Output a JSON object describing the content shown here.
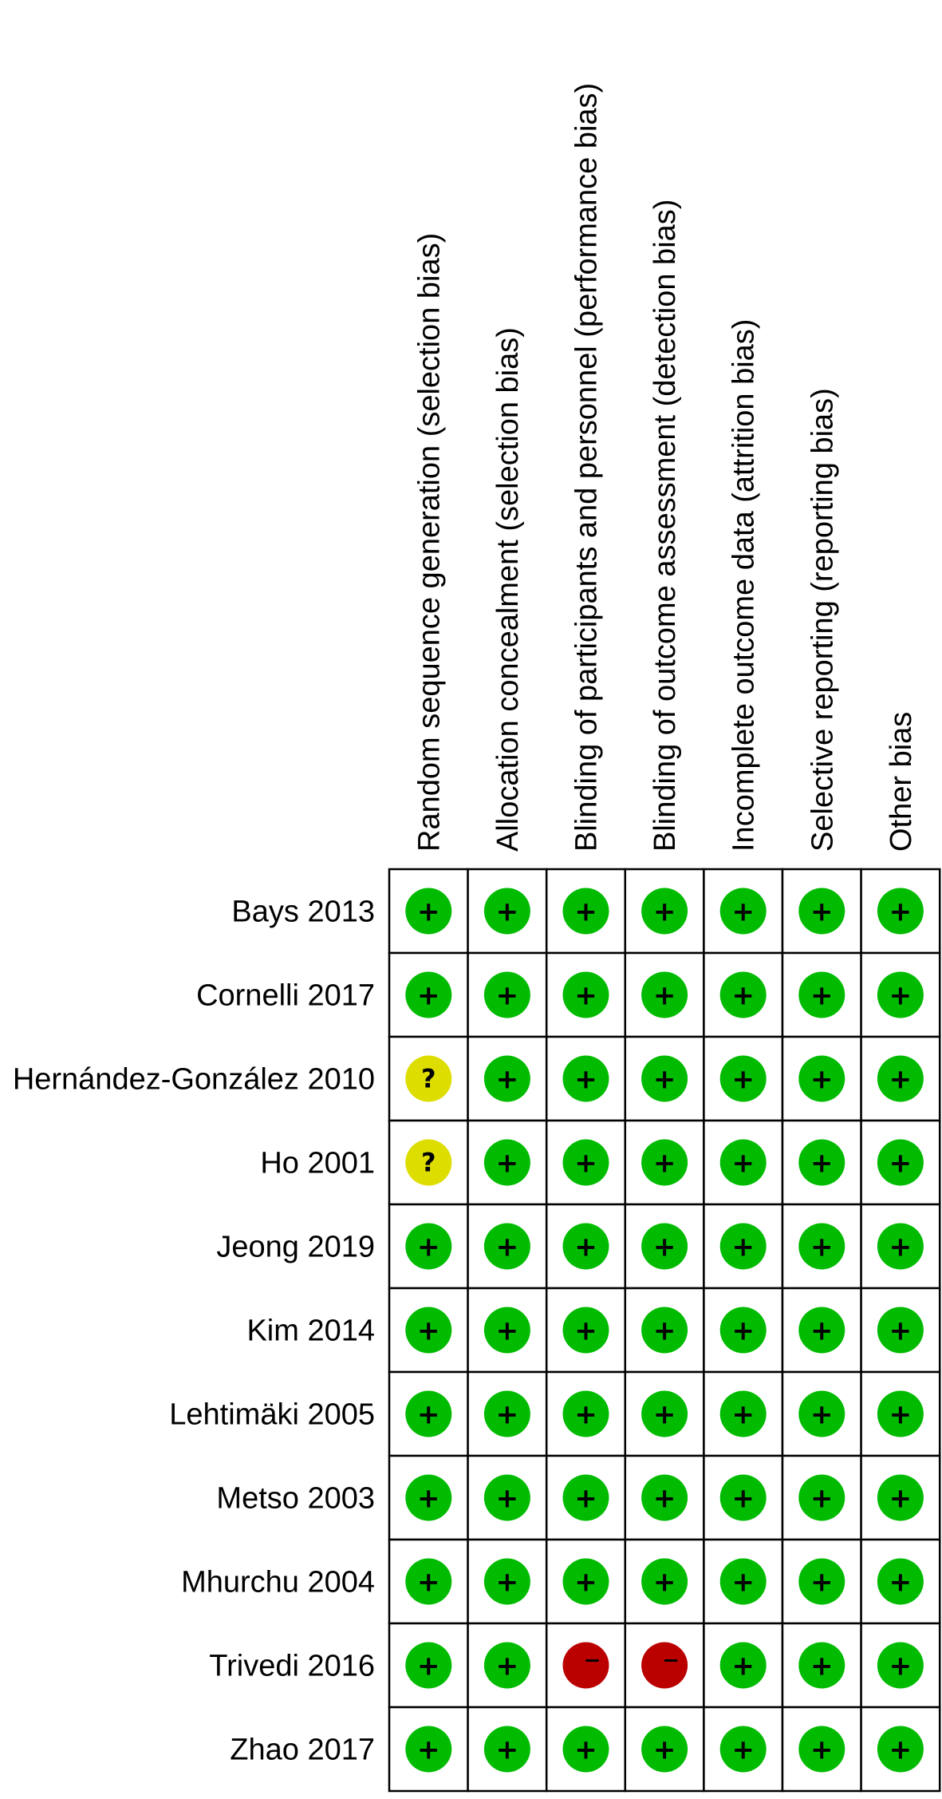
{
  "chart_data": {
    "type": "table",
    "columns": [
      "Random sequence generation (selection bias)",
      "Allocation concealment (selection bias)",
      "Blinding of participants and personnel (performance bias)",
      "Blinding of outcome assessment (detection bias)",
      "Incomplete outcome data (attrition bias)",
      "Selective reporting (reporting bias)",
      "Other bias"
    ],
    "rows": [
      "Bays 2013",
      "Cornelli 2017",
      "Hernández-González 2010",
      "Ho 2001",
      "Jeong 2019",
      "Kim 2014",
      "Lehtimäki 2005",
      "Metso 2003",
      "Mhurchu 2004",
      "Trivedi 2016",
      "Zhao 2017"
    ],
    "values": [
      [
        "+",
        "+",
        "+",
        "+",
        "+",
        "+",
        "+"
      ],
      [
        "+",
        "+",
        "+",
        "+",
        "+",
        "+",
        "+"
      ],
      [
        "?",
        "+",
        "+",
        "+",
        "+",
        "+",
        "+"
      ],
      [
        "?",
        "+",
        "+",
        "+",
        "+",
        "+",
        "+"
      ],
      [
        "+",
        "+",
        "+",
        "+",
        "+",
        "+",
        "+"
      ],
      [
        "+",
        "+",
        "+",
        "+",
        "+",
        "+",
        "+"
      ],
      [
        "+",
        "+",
        "+",
        "+",
        "+",
        "+",
        "+"
      ],
      [
        "+",
        "+",
        "+",
        "+",
        "+",
        "+",
        "+"
      ],
      [
        "+",
        "+",
        "+",
        "+",
        "+",
        "+",
        "+"
      ],
      [
        "+",
        "+",
        "−",
        "−",
        "+",
        "+",
        "+"
      ],
      [
        "+",
        "+",
        "+",
        "+",
        "+",
        "+",
        "+"
      ]
    ],
    "colors": {
      "+": "#00bb00",
      "?": "#dddd00",
      "−": "#bb0000"
    }
  }
}
